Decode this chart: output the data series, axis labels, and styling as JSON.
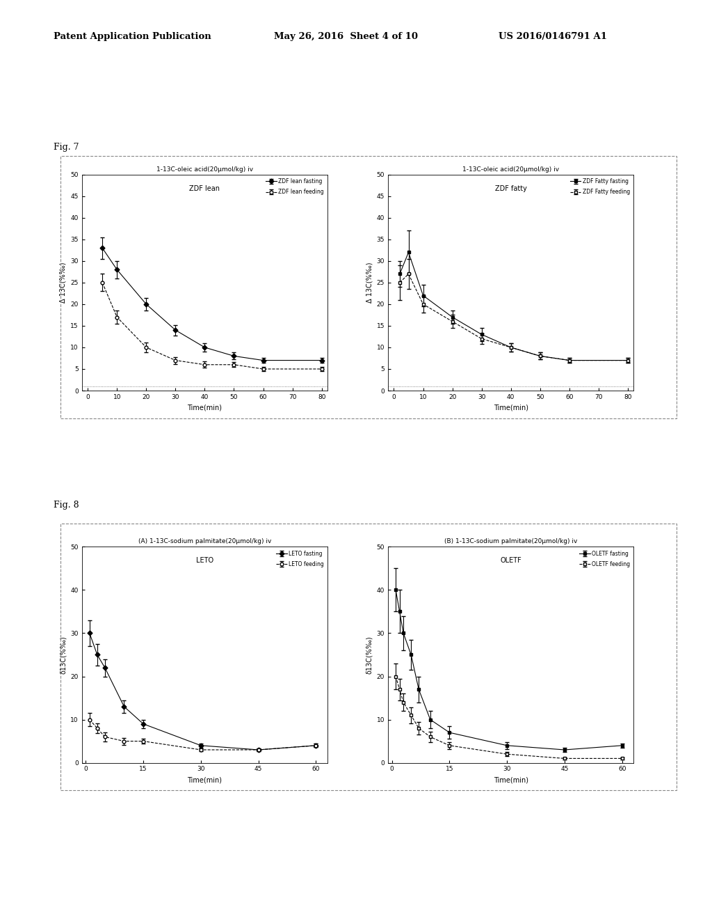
{
  "background_color": "#ffffff",
  "header_left": "Patent Application Publication",
  "header_mid": "May 26, 2016  Sheet 4 of 10",
  "header_right": "US 2016/0146791 A1",
  "fig7_label": "Fig. 7",
  "fig8_label": "Fig. 8",
  "fig7_left_title1": "1-13C-oleic acid(20μmol/kg) iv",
  "fig7_left_title2": "ZDF lean",
  "fig7_right_title1": "1-13C-oleic acid(20μmol/kg) iv",
  "fig7_right_title2": "ZDF fatty",
  "fig7_left_fasting_label": "ZDF lean fasting",
  "fig7_left_feeding_label": "ZDF lean feeding",
  "fig7_right_fasting_label": "ZDF Fatty fasting",
  "fig7_right_feeding_label": "ZDF Fatty feeding",
  "fig7_ylabel": "Δ 13C(%‰)",
  "fig7_xlabel": "Time(min)",
  "fig7_yticks": [
    0,
    5,
    10,
    15,
    20,
    25,
    30,
    35,
    40,
    45,
    50
  ],
  "fig7_xticks": [
    0,
    10,
    20,
    30,
    40,
    50,
    60,
    70,
    80
  ],
  "fig7_left_fasting_x": [
    5,
    10,
    20,
    30,
    40,
    50,
    60,
    80
  ],
  "fig7_left_fasting_y": [
    33,
    28,
    20,
    14,
    10,
    8,
    7,
    7
  ],
  "fig7_left_fasting_err": [
    2.5,
    2.0,
    1.5,
    1.2,
    1.0,
    0.8,
    0.5,
    0.5
  ],
  "fig7_left_feeding_x": [
    5,
    10,
    20,
    30,
    40,
    50,
    60,
    80
  ],
  "fig7_left_feeding_y": [
    25,
    17,
    10,
    7,
    6,
    6,
    5,
    5
  ],
  "fig7_left_feeding_err": [
    2.0,
    1.5,
    1.2,
    0.8,
    0.7,
    0.6,
    0.5,
    0.5
  ],
  "fig7_right_fasting_x": [
    2,
    5,
    10,
    20,
    30,
    40,
    50,
    60,
    80
  ],
  "fig7_right_fasting_y": [
    27,
    32,
    22,
    17,
    13,
    10,
    8,
    7,
    7
  ],
  "fig7_right_fasting_err": [
    3.0,
    5.0,
    2.5,
    1.5,
    1.5,
    1.0,
    0.8,
    0.6,
    0.5
  ],
  "fig7_right_feeding_x": [
    2,
    5,
    10,
    20,
    30,
    40,
    50,
    60,
    80
  ],
  "fig7_right_feeding_y": [
    25,
    27,
    20,
    16,
    12,
    10,
    8,
    7,
    7
  ],
  "fig7_right_feeding_err": [
    4.0,
    3.5,
    2.0,
    1.5,
    1.2,
    1.0,
    0.8,
    0.6,
    0.5
  ],
  "fig8_left_title1": "(A) 1-13C-sodium palmitate(20μmol/kg) iv",
  "fig8_left_title2": "LETO",
  "fig8_right_title1": "(B) 1-13C-sodium palmitate(20μmol/kg) iv",
  "fig8_right_title2": "OLETF",
  "fig8_left_fasting_label": "LETO fasting",
  "fig8_left_feeding_label": "LETO feeding",
  "fig8_right_fasting_label": "OLETF fasting",
  "fig8_right_feeding_label": "OLETF feeding",
  "fig8_ylabel": "δ13C(%‰)",
  "fig8_xlabel": "Time(min)",
  "fig8_yticks": [
    0,
    10,
    20,
    30,
    40,
    50
  ],
  "fig8_xticks": [
    0,
    15,
    30,
    45,
    60
  ],
  "fig8_left_fasting_x": [
    1,
    3,
    5,
    10,
    15,
    30,
    45,
    60
  ],
  "fig8_left_fasting_y": [
    30,
    25,
    22,
    13,
    9,
    4,
    3,
    4
  ],
  "fig8_left_fasting_err": [
    3.0,
    2.5,
    2.0,
    1.5,
    1.0,
    0.5,
    0.4,
    0.4
  ],
  "fig8_left_feeding_x": [
    1,
    3,
    5,
    10,
    15,
    30,
    45,
    60
  ],
  "fig8_left_feeding_y": [
    10,
    8,
    6,
    5,
    5,
    3,
    3,
    4
  ],
  "fig8_left_feeding_err": [
    1.5,
    1.2,
    1.0,
    0.8,
    0.6,
    0.4,
    0.3,
    0.4
  ],
  "fig8_right_fasting_x": [
    1,
    2,
    3,
    5,
    7,
    10,
    15,
    30,
    45,
    60
  ],
  "fig8_right_fasting_y": [
    40,
    35,
    30,
    25,
    17,
    10,
    7,
    4,
    3,
    4
  ],
  "fig8_right_fasting_err": [
    5.0,
    5.0,
    4.0,
    3.5,
    3.0,
    2.0,
    1.5,
    0.8,
    0.5,
    0.5
  ],
  "fig8_right_feeding_x": [
    1,
    2,
    3,
    5,
    7,
    10,
    15,
    30,
    45,
    60
  ],
  "fig8_right_feeding_y": [
    20,
    17,
    14,
    11,
    8,
    6,
    4,
    2,
    1,
    1
  ],
  "fig8_right_feeding_err": [
    3.0,
    2.5,
    2.0,
    1.8,
    1.5,
    1.2,
    0.8,
    0.5,
    0.3,
    0.3
  ]
}
